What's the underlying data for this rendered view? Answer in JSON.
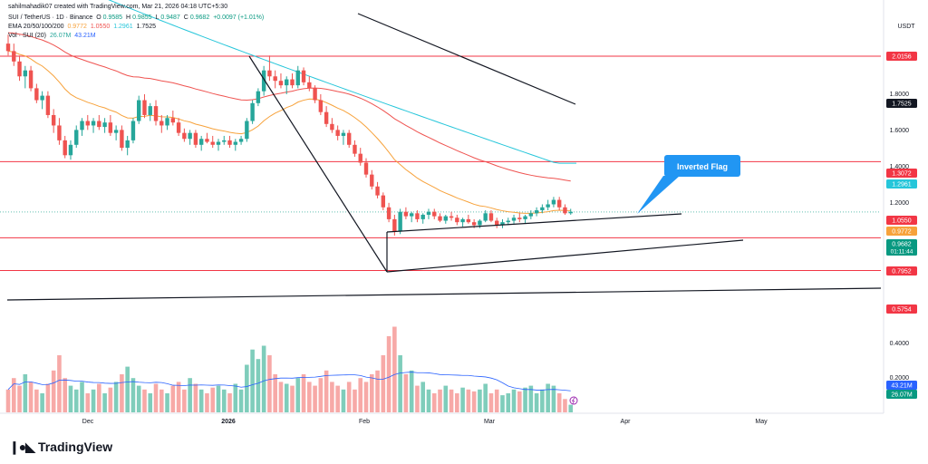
{
  "header": {
    "byline": "sahilmahadik07 created with TradingView.com, Mar 21, 2026 04:18 UTC+5:30",
    "symbol": "SUI / TetherUS · 1D · Binance",
    "ohlc": {
      "o_label": "O",
      "o": "0.9585",
      "h_label": "H",
      "h": "0.9855",
      "l_label": "L",
      "l": "0.9487",
      "c_label": "C",
      "c": "0.9682",
      "change": "+0.0097 (+1.01%)"
    },
    "ema": {
      "label": "EMA 20/50/100/200",
      "v20": "0.9772",
      "v50": "1.0550",
      "v100": "1.2961",
      "v200": "1.7525"
    },
    "vol": {
      "label": "Vol · SUI (20)",
      "v1": "26.07M",
      "v2": "43.21M"
    }
  },
  "axis": {
    "currency": "USDT",
    "price_ticks": [
      "1.8000",
      "1.6000",
      "1.4000",
      "1.2000",
      "0.4000",
      "0.2000"
    ],
    "time_ticks": [
      "Dec",
      "2026",
      "Feb",
      "Mar",
      "Apr",
      "May"
    ]
  },
  "price_tags": [
    {
      "text": "2.0156",
      "bg": "#f23645",
      "fg": "#ffffff"
    },
    {
      "text": "1.7525",
      "bg": "#131722",
      "fg": "#ffffff"
    },
    {
      "text": "1.3072",
      "bg": "#f23645",
      "fg": "#ffffff"
    },
    {
      "text": "1.2961",
      "bg": "#26c6da",
      "fg": "#ffffff"
    },
    {
      "text": "1.0550",
      "bg": "#f23645",
      "fg": "#ffffff"
    },
    {
      "text": "0.9772",
      "bg": "#f7a23b",
      "fg": "#ffffff"
    },
    {
      "text": "0.9682",
      "sub": "01:11:44",
      "bg": "#089981",
      "fg": "#ffffff"
    },
    {
      "text": "0.7952",
      "bg": "#f23645",
      "fg": "#ffffff"
    },
    {
      "text": "0.5754",
      "bg": "#f23645",
      "fg": "#ffffff"
    },
    {
      "text": "43.21M",
      "bg": "#2962ff",
      "fg": "#ffffff"
    },
    {
      "text": "26.07M",
      "bg": "#089981",
      "fg": "#ffffff"
    }
  ],
  "annotation": {
    "text": "Inverted Flag",
    "bg": "#2196f3",
    "fg": "#ffffff"
  },
  "colors": {
    "up": "#26a69a",
    "down": "#ef5350",
    "hline": "#f23645",
    "ema20": "#f7a23b",
    "ema50": "#ef5350",
    "ema100": "#26c6da",
    "ema200": "#131722"
  },
  "brand": "TradingView",
  "chart_data": {
    "type": "candlestick",
    "symbol": "SUIUSDT",
    "horizontal_levels": [
      2.0156,
      1.3072,
      0.7952,
      0.5754
    ],
    "candles": [
      [
        2.1,
        2.16,
        2.02,
        2.05
      ],
      [
        2.05,
        2.1,
        1.95,
        1.98
      ],
      [
        1.98,
        2.02,
        1.85,
        1.88
      ],
      [
        1.88,
        1.95,
        1.8,
        1.92
      ],
      [
        1.92,
        1.95,
        1.78,
        1.8
      ],
      [
        1.8,
        1.83,
        1.7,
        1.72
      ],
      [
        1.72,
        1.78,
        1.66,
        1.75
      ],
      [
        1.75,
        1.78,
        1.6,
        1.62
      ],
      [
        1.62,
        1.66,
        1.5,
        1.55
      ],
      [
        1.55,
        1.6,
        1.42,
        1.45
      ],
      [
        1.45,
        1.48,
        1.33,
        1.35
      ],
      [
        1.35,
        1.45,
        1.32,
        1.42
      ],
      [
        1.42,
        1.55,
        1.4,
        1.52
      ],
      [
        1.52,
        1.6,
        1.48,
        1.58
      ],
      [
        1.58,
        1.62,
        1.52,
        1.55
      ],
      [
        1.55,
        1.6,
        1.5,
        1.58
      ],
      [
        1.58,
        1.62,
        1.52,
        1.54
      ],
      [
        1.54,
        1.6,
        1.5,
        1.57
      ],
      [
        1.57,
        1.62,
        1.48,
        1.5
      ],
      [
        1.5,
        1.55,
        1.45,
        1.52
      ],
      [
        1.52,
        1.55,
        1.38,
        1.4
      ],
      [
        1.4,
        1.48,
        1.35,
        1.45
      ],
      [
        1.45,
        1.6,
        1.43,
        1.58
      ],
      [
        1.58,
        1.75,
        1.56,
        1.72
      ],
      [
        1.72,
        1.76,
        1.6,
        1.62
      ],
      [
        1.62,
        1.7,
        1.58,
        1.68
      ],
      [
        1.68,
        1.72,
        1.55,
        1.58
      ],
      [
        1.58,
        1.62,
        1.5,
        1.55
      ],
      [
        1.55,
        1.62,
        1.52,
        1.6
      ],
      [
        1.6,
        1.65,
        1.55,
        1.57
      ],
      [
        1.57,
        1.6,
        1.48,
        1.5
      ],
      [
        1.5,
        1.53,
        1.44,
        1.46
      ],
      [
        1.46,
        1.52,
        1.42,
        1.5
      ],
      [
        1.5,
        1.52,
        1.4,
        1.42
      ],
      [
        1.42,
        1.48,
        1.38,
        1.46
      ],
      [
        1.46,
        1.5,
        1.43,
        1.44
      ],
      [
        1.44,
        1.48,
        1.4,
        1.42
      ],
      [
        1.42,
        1.46,
        1.38,
        1.44
      ],
      [
        1.44,
        1.48,
        1.42,
        1.45
      ],
      [
        1.45,
        1.48,
        1.4,
        1.42
      ],
      [
        1.42,
        1.46,
        1.38,
        1.44
      ],
      [
        1.44,
        1.48,
        1.42,
        1.46
      ],
      [
        1.46,
        1.6,
        1.44,
        1.58
      ],
      [
        1.58,
        1.72,
        1.56,
        1.7
      ],
      [
        1.7,
        1.8,
        1.68,
        1.78
      ],
      [
        1.78,
        1.95,
        1.75,
        1.92
      ],
      [
        1.92,
        2.02,
        1.85,
        1.88
      ],
      [
        1.88,
        1.92,
        1.8,
        1.85
      ],
      [
        1.85,
        1.9,
        1.8,
        1.82
      ],
      [
        1.82,
        1.88,
        1.76,
        1.86
      ],
      [
        1.86,
        1.9,
        1.8,
        1.82
      ],
      [
        1.82,
        1.95,
        1.8,
        1.92
      ],
      [
        1.92,
        1.94,
        1.82,
        1.84
      ],
      [
        1.84,
        1.88,
        1.78,
        1.8
      ],
      [
        1.8,
        1.82,
        1.7,
        1.72
      ],
      [
        1.72,
        1.76,
        1.62,
        1.64
      ],
      [
        1.64,
        1.68,
        1.54,
        1.56
      ],
      [
        1.56,
        1.6,
        1.5,
        1.52
      ],
      [
        1.52,
        1.55,
        1.45,
        1.48
      ],
      [
        1.48,
        1.52,
        1.42,
        1.5
      ],
      [
        1.5,
        1.52,
        1.4,
        1.42
      ],
      [
        1.42,
        1.45,
        1.34,
        1.36
      ],
      [
        1.36,
        1.4,
        1.28,
        1.3
      ],
      [
        1.3,
        1.33,
        1.2,
        1.22
      ],
      [
        1.22,
        1.25,
        1.12,
        1.14
      ],
      [
        1.14,
        1.17,
        1.06,
        1.08
      ],
      [
        1.08,
        1.1,
        0.98,
        1.0
      ],
      [
        1.0,
        1.03,
        0.9,
        0.92
      ],
      [
        0.92,
        0.95,
        0.81,
        0.84
      ],
      [
        0.84,
        0.99,
        0.82,
        0.97
      ],
      [
        0.97,
        1.0,
        0.92,
        0.94
      ],
      [
        0.94,
        0.97,
        0.9,
        0.96
      ],
      [
        0.96,
        0.98,
        0.9,
        0.92
      ],
      [
        0.92,
        0.96,
        0.89,
        0.95
      ],
      [
        0.95,
        0.99,
        0.92,
        0.97
      ],
      [
        0.97,
        0.99,
        0.92,
        0.94
      ],
      [
        0.94,
        0.96,
        0.9,
        0.91
      ],
      [
        0.91,
        0.95,
        0.89,
        0.94
      ],
      [
        0.94,
        0.97,
        0.91,
        0.93
      ],
      [
        0.93,
        0.95,
        0.88,
        0.9
      ],
      [
        0.9,
        0.93,
        0.87,
        0.92
      ],
      [
        0.92,
        0.95,
        0.89,
        0.9
      ],
      [
        0.9,
        0.92,
        0.86,
        0.88
      ],
      [
        0.88,
        0.92,
        0.86,
        0.91
      ],
      [
        0.91,
        0.98,
        0.9,
        0.96
      ],
      [
        0.96,
        0.98,
        0.9,
        0.91
      ],
      [
        0.91,
        0.93,
        0.86,
        0.88
      ],
      [
        0.88,
        0.92,
        0.86,
        0.9
      ],
      [
        0.9,
        0.93,
        0.88,
        0.91
      ],
      [
        0.91,
        0.95,
        0.89,
        0.93
      ],
      [
        0.93,
        0.96,
        0.9,
        0.92
      ],
      [
        0.92,
        0.95,
        0.89,
        0.94
      ],
      [
        0.94,
        0.98,
        0.92,
        0.96
      ],
      [
        0.96,
        1.0,
        0.94,
        0.98
      ],
      [
        0.98,
        1.02,
        0.96,
        1.0
      ],
      [
        1.0,
        1.05,
        0.98,
        1.02
      ],
      [
        1.02,
        1.07,
        1.0,
        1.05
      ],
      [
        1.05,
        1.07,
        0.98,
        1.0
      ],
      [
        1.0,
        1.02,
        0.95,
        0.96
      ],
      [
        0.96,
        0.99,
        0.95,
        0.97
      ]
    ],
    "volume": [
      0.12,
      0.18,
      0.14,
      0.2,
      0.16,
      0.12,
      0.1,
      0.15,
      0.22,
      0.3,
      0.18,
      0.14,
      0.12,
      0.16,
      0.1,
      0.12,
      0.15,
      0.1,
      0.13,
      0.16,
      0.2,
      0.24,
      0.18,
      0.14,
      0.12,
      0.1,
      0.15,
      0.12,
      0.1,
      0.14,
      0.16,
      0.12,
      0.18,
      0.15,
      0.12,
      0.1,
      0.13,
      0.14,
      0.12,
      0.1,
      0.15,
      0.12,
      0.25,
      0.33,
      0.28,
      0.35,
      0.3,
      0.2,
      0.16,
      0.15,
      0.14,
      0.18,
      0.2,
      0.16,
      0.14,
      0.18,
      0.22,
      0.16,
      0.14,
      0.12,
      0.16,
      0.12,
      0.18,
      0.16,
      0.2,
      0.22,
      0.3,
      0.4,
      0.45,
      0.3,
      0.2,
      0.22,
      0.14,
      0.16,
      0.12,
      0.1,
      0.12,
      0.14,
      0.12,
      0.1,
      0.13,
      0.12,
      0.11,
      0.12,
      0.15,
      0.1,
      0.12,
      0.09,
      0.1,
      0.12,
      0.11,
      0.13,
      0.14,
      0.1,
      0.12,
      0.15,
      0.14,
      0.1,
      0.07,
      0.04
    ],
    "trendlines": [
      {
        "from": [
          "Nov",
          "2.15"
        ],
        "to": [
          "Apr",
          "1.75"
        ]
      },
      {
        "name": "flag_upper",
        "from": [
          "Feb",
          "1.00"
        ],
        "to": [
          "Apr",
          "1.10"
        ]
      },
      {
        "name": "flag_lower",
        "from": [
          "Feb",
          "0.80"
        ],
        "to": [
          "Apr",
          "0.98"
        ]
      }
    ]
  }
}
